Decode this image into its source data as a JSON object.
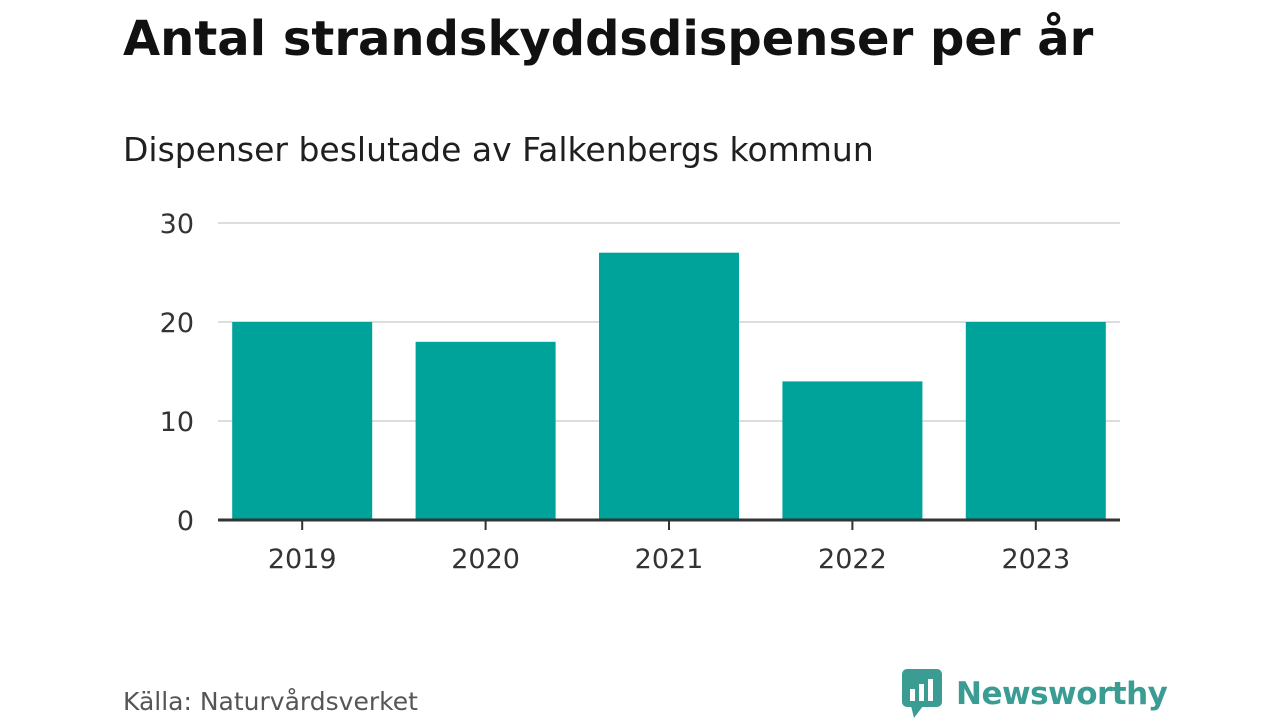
{
  "chart_data": {
    "type": "bar",
    "title": "Antal strandskyddsdispenser per år",
    "subtitle": "Dispenser beslutade av Falkenbergs kommun",
    "categories": [
      "2019",
      "2020",
      "2021",
      "2022",
      "2023"
    ],
    "values": [
      20,
      18,
      27,
      14,
      20
    ],
    "yticks": [
      "0",
      "10",
      "20",
      "30"
    ],
    "ylim": [
      0,
      30
    ],
    "xlabel": "",
    "ylabel": "",
    "grid": true,
    "bar_color": "#00a39a",
    "grid_color": "#dddddd",
    "axis_color": "#333333"
  },
  "footer": {
    "source": "Källa: Naturvårdsverket",
    "brand": "Newsworthy",
    "brand_color": "#3a9c92",
    "brand_icon": "bar-chart-bubble-icon"
  }
}
